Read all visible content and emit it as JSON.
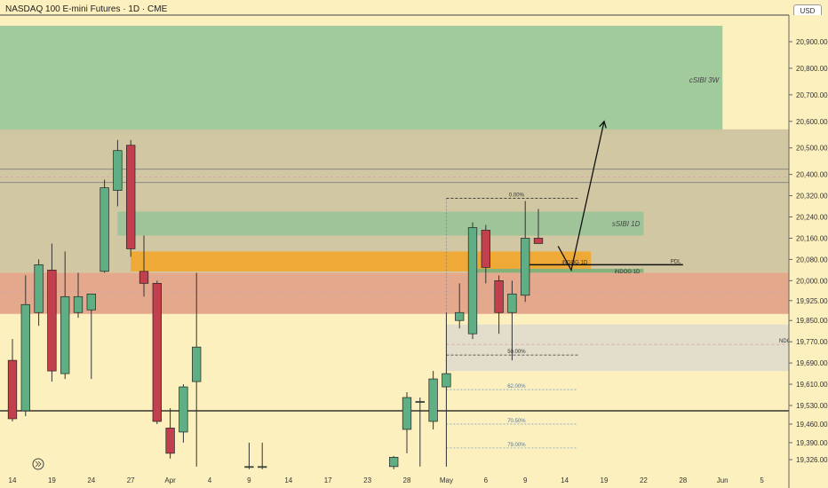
{
  "header": {
    "title": "NASDAQ 100 E-mini Futures · 1D · CME",
    "currency": "USD"
  },
  "colors": {
    "bull": "#5fae84",
    "bear": "#c2404d",
    "wick": "#333333",
    "background": "#fdf0bf"
  },
  "chart_data": {
    "type": "candlestick",
    "y_ticks": [
      {
        "label": "20,900.00",
        "value": 20900
      },
      {
        "label": "20,800.00",
        "value": 20800
      },
      {
        "label": "20,700.00",
        "value": 20700
      },
      {
        "label": "20,600.00",
        "value": 20600
      },
      {
        "label": "20,500.00",
        "value": 20500
      },
      {
        "label": "20,400.00",
        "value": 20400
      },
      {
        "label": "20,320.00",
        "value": 20320
      },
      {
        "label": "20,240.00",
        "value": 20240
      },
      {
        "label": "20,160.00",
        "value": 20160
      },
      {
        "label": "20,080.00",
        "value": 20080
      },
      {
        "label": "20,000.00",
        "value": 20000
      },
      {
        "label": "19,925.00",
        "value": 19925
      },
      {
        "label": "19,850.00",
        "value": 19850
      },
      {
        "label": "19,770.00",
        "value": 19770
      },
      {
        "label": "19,690.00",
        "value": 19690
      },
      {
        "label": "19,610.00",
        "value": 19610
      },
      {
        "label": "19,530.00",
        "value": 19530
      },
      {
        "label": "19,460.00",
        "value": 19460
      },
      {
        "label": "19,390.00",
        "value": 19390
      },
      {
        "label": "19,326.00",
        "value": 19326
      }
    ],
    "x_ticks": [
      {
        "label": "14",
        "bar": 0
      },
      {
        "label": "19",
        "bar": 3
      },
      {
        "label": "24",
        "bar": 6
      },
      {
        "label": "27",
        "bar": 9
      },
      {
        "label": "Apr",
        "bar": 12
      },
      {
        "label": "4",
        "bar": 15
      },
      {
        "label": "9",
        "bar": 18
      },
      {
        "label": "14",
        "bar": 21
      },
      {
        "label": "17",
        "bar": 24
      },
      {
        "label": "23",
        "bar": 27
      },
      {
        "label": "28",
        "bar": 30
      },
      {
        "label": "May",
        "bar": 33
      },
      {
        "label": "6",
        "bar": 36
      },
      {
        "label": "9",
        "bar": 39
      },
      {
        "label": "14",
        "bar": 42
      },
      {
        "label": "19",
        "bar": 45
      },
      {
        "label": "22",
        "bar": 48
      },
      {
        "label": "28",
        "bar": 51
      },
      {
        "label": "Jun",
        "bar": 54
      },
      {
        "label": "5",
        "bar": 57
      }
    ],
    "candles": [
      {
        "bar": 0,
        "o": 19700,
        "h": 19780,
        "l": 19470,
        "c": 19480
      },
      {
        "bar": 1,
        "o": 19510,
        "h": 20020,
        "l": 19490,
        "c": 19910
      },
      {
        "bar": 2,
        "o": 19880,
        "h": 20080,
        "l": 19830,
        "c": 20060
      },
      {
        "bar": 3,
        "o": 20040,
        "h": 20140,
        "l": 19620,
        "c": 19660
      },
      {
        "bar": 4,
        "o": 19650,
        "h": 20110,
        "l": 19630,
        "c": 19940
      },
      {
        "bar": 5,
        "o": 19880,
        "h": 20030,
        "l": 19860,
        "c": 19940
      },
      {
        "bar": 6,
        "o": 19890,
        "h": 19940,
        "l": 19630,
        "c": 19950
      },
      {
        "bar": 7,
        "o": 20035,
        "h": 20380,
        "l": 20030,
        "c": 20350
      },
      {
        "bar": 8,
        "o": 20340,
        "h": 20530,
        "l": 20280,
        "c": 20490
      },
      {
        "bar": 9,
        "o": 20510,
        "h": 20530,
        "l": 20090,
        "c": 20120
      },
      {
        "bar": 10,
        "o": 20035,
        "h": 20170,
        "l": 19940,
        "c": 19990
      },
      {
        "bar": 11,
        "o": 19990,
        "h": 20000,
        "l": 19460,
        "c": 19470
      },
      {
        "bar": 12,
        "o": 19445,
        "h": 19520,
        "l": 19330,
        "c": 19350
      },
      {
        "bar": 13,
        "o": 19430,
        "h": 19610,
        "l": 19390,
        "c": 19600
      },
      {
        "bar": 14,
        "o": 19620,
        "h": 20030,
        "l": 19300,
        "c": 19750
      },
      {
        "bar": 18,
        "o": 19300,
        "h": 19390,
        "l": 19290,
        "c": 19300
      },
      {
        "bar": 19,
        "o": 19300,
        "h": 19390,
        "l": 19290,
        "c": 19300
      },
      {
        "bar": 29,
        "o": 19300,
        "h": 19340,
        "l": 19290,
        "c": 19335
      },
      {
        "bar": 30,
        "o": 19440,
        "h": 19580,
        "l": 19350,
        "c": 19560
      },
      {
        "bar": 31,
        "o": 19545,
        "h": 19560,
        "l": 19300,
        "c": 19545
      },
      {
        "bar": 32,
        "o": 19470,
        "h": 19660,
        "l": 19440,
        "c": 19630
      },
      {
        "bar": 33,
        "o": 19600,
        "h": 19880,
        "l": 19300,
        "c": 19650
      },
      {
        "bar": 34,
        "o": 19850,
        "h": 19990,
        "l": 19820,
        "c": 19880
      },
      {
        "bar": 35,
        "o": 19800,
        "h": 20220,
        "l": 19780,
        "c": 20200
      },
      {
        "bar": 36,
        "o": 20190,
        "h": 20210,
        "l": 19990,
        "c": 20050
      },
      {
        "bar": 37,
        "o": 20000,
        "h": 20020,
        "l": 19800,
        "c": 19880
      },
      {
        "bar": 38,
        "o": 19880,
        "h": 20000,
        "l": 19700,
        "c": 19950
      },
      {
        "bar": 39,
        "o": 19945,
        "h": 20300,
        "l": 19920,
        "c": 20160
      },
      {
        "bar": 40,
        "o": 20160,
        "h": 20270,
        "l": 20140,
        "c": 20140
      }
    ],
    "zones": [
      {
        "label": "cSIBI 3W",
        "bar_start": -1,
        "bar_end": 54,
        "top": 20960,
        "bottom": 20550,
        "color": "#9cc89a"
      },
      {
        "label": "",
        "bar_start": -1,
        "bar_end": 60,
        "top": 20570,
        "bottom": 20030,
        "color": "#cfc4a0"
      },
      {
        "label": "sSIBI 1D",
        "bar_start": 8,
        "bar_end": 48,
        "top": 20260,
        "bottom": 20170,
        "color": "#9cc49a"
      },
      {
        "label": "",
        "bar_start": -1,
        "bar_end": 60,
        "top": 20030,
        "bottom": 19875,
        "color": "#e3a489"
      },
      {
        "label": "iNDOG 1D",
        "bar_start": 9,
        "bar_end": 44,
        "top": 20110,
        "bottom": 20035,
        "color": "#f0a830"
      },
      {
        "label": "iNDOG 1D",
        "bar_start": 35,
        "bar_end": 48,
        "top": 20045,
        "bottom": 20030,
        "color": "#7fb07a"
      },
      {
        "label": "",
        "bar_start": 33,
        "bar_end": 60,
        "top": 19835,
        "bottom": 19660,
        "color": "#e0dccb"
      }
    ],
    "level_lines": [
      {
        "label": "PDL",
        "value": 20060,
        "bar_start": 39,
        "bar_end": 51,
        "style": "solid"
      },
      {
        "label": "",
        "value": 19510,
        "bar_start": -1,
        "bar_end": 60,
        "style": "solid"
      },
      {
        "label": "",
        "value": 20420,
        "bar_start": -1,
        "bar_end": 60,
        "style": "gray"
      },
      {
        "label": "",
        "value": 20370,
        "bar_start": -1,
        "bar_end": 60,
        "style": "gray"
      },
      {
        "label": "",
        "value": 20390,
        "bar_start": -1,
        "bar_end": 60,
        "style": "dash"
      },
      {
        "label": "",
        "value": 19960,
        "bar_start": -1,
        "bar_end": 60,
        "style": "dash"
      },
      {
        "label": "NDOG",
        "value": 19760,
        "bar_start": 33,
        "bar_end": 60,
        "style": "dash"
      }
    ],
    "fib_levels": [
      {
        "label": "0.00%",
        "value": 20310
      },
      {
        "label": "50.00%",
        "value": 19720
      },
      {
        "label": "62.00%",
        "value": 19590
      },
      {
        "label": "70.50%",
        "value": 19460
      },
      {
        "label": "79.00%",
        "value": 19370
      }
    ],
    "projection": [
      {
        "bar": 41.5,
        "value": 20130
      },
      {
        "bar": 42.5,
        "value": 20040
      },
      {
        "bar": 45,
        "value": 20600
      }
    ]
  }
}
